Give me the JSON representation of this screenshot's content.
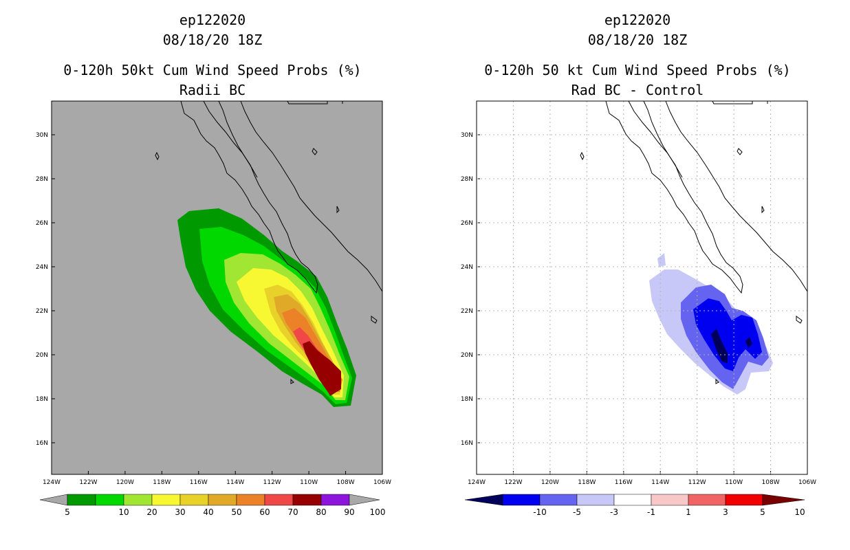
{
  "panels": [
    {
      "id": "left",
      "title_storm": "ep122020",
      "title_datetime": "08/18/20 18Z",
      "title_product": "0-120h 50kt Cum Wind Speed Probs (%)",
      "title_subtitle": "Radii BC",
      "background": "#a8a8a8",
      "grid": false,
      "colorbar": {
        "colors": [
          "#a8a8a8",
          "#009900",
          "#00d800",
          "#a0e632",
          "#f8f832",
          "#e8d22a",
          "#e0aa28",
          "#ec8228",
          "#f04848",
          "#960000",
          "#8c14dc",
          "#a8a8a8"
        ],
        "labels": [
          "5",
          "10",
          "20",
          "30",
          "40",
          "50",
          "60",
          "70",
          "80",
          "90",
          "100"
        ]
      }
    },
    {
      "id": "right",
      "title_storm": "ep122020",
      "title_datetime": "08/18/20 18Z",
      "title_product": "0-120h 50 kt Cum Wind Speed Probs (%)",
      "title_subtitle": "Rad BC - Control",
      "background": "#ffffff",
      "grid": true,
      "colorbar": {
        "colors": [
          "#00005a",
          "#0000f0",
          "#6464f0",
          "#c8c8f8",
          "#ffffff",
          "#f8c8c8",
          "#f06464",
          "#f00000",
          "#780000"
        ],
        "labels": [
          "-10",
          "-5",
          "-3",
          "-1",
          "1",
          "3",
          "5",
          "10"
        ]
      }
    }
  ],
  "axes": {
    "lon_ticks": [
      "124W",
      "122W",
      "120W",
      "118W",
      "116W",
      "114W",
      "112W",
      "110W",
      "108W",
      "106W"
    ],
    "lat_ticks": [
      "30N",
      "28N",
      "26N",
      "24N",
      "22N",
      "20N",
      "18N",
      "16N"
    ]
  }
}
